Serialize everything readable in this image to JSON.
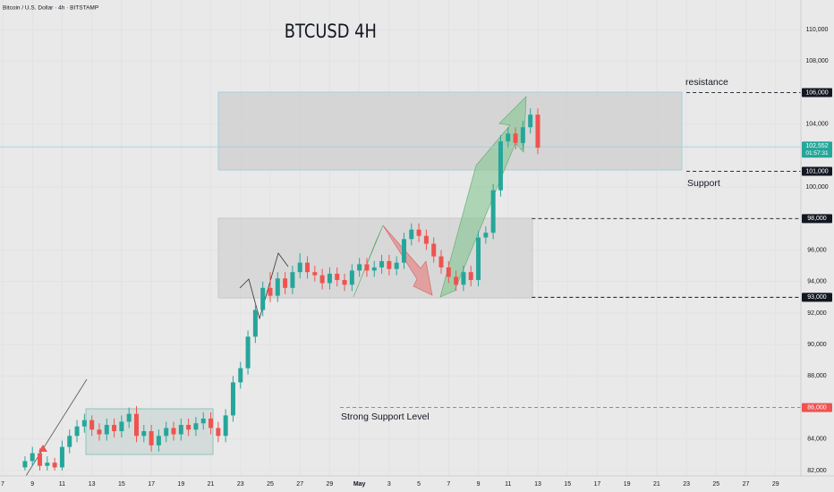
{
  "chart_data": {
    "type": "candlestick",
    "title": "Bitcoin / U.S. Dollar · 4h · BITSTAMP",
    "subtitle": "BTCUSD 4H",
    "annotations": {
      "resistance": "resistance",
      "support": "Support",
      "strong_support": "Strong Support Level"
    },
    "up_color": "#26a69a",
    "down_color": "#ef5350",
    "xlim": [
      -0.18,
      53.7
    ],
    "xticks": [
      {
        "value": 0,
        "label": "7"
      },
      {
        "value": 2,
        "label": "9"
      },
      {
        "value": 4,
        "label": "11"
      },
      {
        "value": 6,
        "label": "13"
      },
      {
        "value": 8,
        "label": "15"
      },
      {
        "value": 10,
        "label": "17"
      },
      {
        "value": 12,
        "label": "19"
      },
      {
        "value": 14,
        "label": "21"
      },
      {
        "value": 16,
        "label": "23"
      },
      {
        "value": 18,
        "label": "25"
      },
      {
        "value": 20,
        "label": "27"
      },
      {
        "value": 22,
        "label": "29"
      },
      {
        "value": 24,
        "label": "May"
      },
      {
        "value": 26,
        "label": "3"
      },
      {
        "value": 28,
        "label": "5"
      },
      {
        "value": 30,
        "label": "7"
      },
      {
        "value": 32,
        "label": "9"
      },
      {
        "value": 34,
        "label": "11"
      },
      {
        "value": 36,
        "label": "13"
      },
      {
        "value": 38,
        "label": "15"
      },
      {
        "value": 40,
        "label": "17"
      },
      {
        "value": 42,
        "label": "19"
      },
      {
        "value": 44,
        "label": "21"
      },
      {
        "value": 46,
        "label": "23"
      },
      {
        "value": 48,
        "label": "25"
      },
      {
        "value": 50,
        "label": "27"
      },
      {
        "value": 52,
        "label": "29"
      }
    ],
    "ylim": [
      81660,
      111880
    ],
    "yticks": [
      {
        "value": 82000,
        "label": "82,000"
      },
      {
        "value": 84000,
        "label": "84,000"
      },
      {
        "value": 88000,
        "label": "88,000"
      },
      {
        "value": 90000,
        "label": "90,000"
      },
      {
        "value": 92000,
        "label": "92,000"
      },
      {
        "value": 94000,
        "label": "94,000"
      },
      {
        "value": 96000,
        "label": "96,000"
      },
      {
        "value": 100000,
        "label": "100,000"
      },
      {
        "value": 104000,
        "label": "104,000"
      },
      {
        "value": 108000,
        "label": "108,000"
      },
      {
        "value": 110000,
        "label": "110,000"
      }
    ],
    "levels": [
      {
        "value": 106000,
        "label": "106,000",
        "color": "#131722"
      },
      {
        "value": 101000,
        "label": "101,000",
        "color": "#131722"
      },
      {
        "value": 98000,
        "label": "98,000",
        "color": "#131722"
      },
      {
        "value": 93000,
        "label": "93,000",
        "color": "#131722"
      },
      {
        "value": 86000,
        "label": "86,000",
        "color": "#ef5350"
      }
    ],
    "last_price": {
      "value": 102552,
      "label": "102,552",
      "countdown": "01:57:31",
      "color": "#26a69a"
    },
    "x": [
      1.5,
      2,
      2.5,
      3,
      3.5,
      4,
      4.5,
      5,
      5.5,
      6,
      6.5,
      7,
      7.5,
      8,
      8.5,
      9,
      9.5,
      10,
      10.5,
      11,
      11.5,
      12,
      12.5,
      13,
      13.5,
      14,
      14.5,
      15,
      15.5,
      16,
      16.5,
      17,
      17.5,
      18,
      18.5,
      19,
      19.5,
      20,
      20.5,
      21,
      21.5,
      22,
      22.5,
      23,
      23.5,
      24,
      24.5,
      25,
      25.5,
      26,
      26.5,
      27,
      27.5,
      28,
      28.5,
      29,
      29.5,
      30,
      30.5,
      31,
      31.5,
      32,
      32.5,
      33,
      33.5,
      34,
      34.5,
      35,
      35.5,
      36
    ],
    "candles": [
      [
        82200,
        82900,
        82000,
        82600
      ],
      [
        82600,
        83500,
        82300,
        83100
      ],
      [
        83100,
        83400,
        82000,
        82300
      ],
      [
        82300,
        82900,
        82000,
        82500
      ],
      [
        82500,
        82800,
        82000,
        82200
      ],
      [
        82200,
        83900,
        82000,
        83500
      ],
      [
        83500,
        84600,
        83100,
        84200
      ],
      [
        84200,
        85200,
        83800,
        84800
      ],
      [
        84800,
        85600,
        84400,
        85200
      ],
      [
        85200,
        85500,
        84200,
        84600
      ],
      [
        84600,
        85000,
        83900,
        84300
      ],
      [
        84300,
        85300,
        83900,
        84900
      ],
      [
        84900,
        85300,
        84100,
        84500
      ],
      [
        84500,
        85500,
        84100,
        85100
      ],
      [
        85100,
        86000,
        84700,
        85600
      ],
      [
        85600,
        86100,
        83800,
        84200
      ],
      [
        84200,
        84900,
        83800,
        84500
      ],
      [
        84500,
        84900,
        83200,
        83600
      ],
      [
        83600,
        84600,
        83200,
        84200
      ],
      [
        84200,
        85100,
        83800,
        84700
      ],
      [
        84700,
        85100,
        83900,
        84300
      ],
      [
        84300,
        85300,
        83900,
        84900
      ],
      [
        84900,
        85300,
        84200,
        84600
      ],
      [
        84600,
        85400,
        84200,
        85000
      ],
      [
        85000,
        85700,
        84600,
        85300
      ],
      [
        85300,
        85700,
        84300,
        84700
      ],
      [
        84700,
        85100,
        83800,
        84200
      ],
      [
        84200,
        85900,
        83800,
        85500
      ],
      [
        85500,
        88000,
        85100,
        87600
      ],
      [
        87600,
        88900,
        87200,
        88500
      ],
      [
        88500,
        90900,
        88100,
        90500
      ],
      [
        90500,
        92600,
        90100,
        92200
      ],
      [
        92200,
        94000,
        91800,
        93600
      ],
      [
        93600,
        94600,
        92700,
        93100
      ],
      [
        93100,
        94600,
        92700,
        94200
      ],
      [
        94200,
        94600,
        93200,
        93600
      ],
      [
        93600,
        95000,
        93200,
        94600
      ],
      [
        94600,
        95800,
        94200,
        95200
      ],
      [
        95200,
        95600,
        94200,
        94600
      ],
      [
        94600,
        95000,
        94000,
        94400
      ],
      [
        94400,
        94800,
        93500,
        93900
      ],
      [
        93900,
        94900,
        93500,
        94500
      ],
      [
        94500,
        94900,
        93700,
        94100
      ],
      [
        94100,
        94500,
        93400,
        93800
      ],
      [
        93800,
        95100,
        93400,
        94700
      ],
      [
        94700,
        95500,
        94300,
        95100
      ],
      [
        95100,
        95500,
        94300,
        94700
      ],
      [
        94700,
        95300,
        94300,
        94900
      ],
      [
        94900,
        95700,
        94500,
        95300
      ],
      [
        95300,
        95700,
        94400,
        94800
      ],
      [
        94800,
        95600,
        94400,
        95200
      ],
      [
        95200,
        97100,
        94800,
        96700
      ],
      [
        96700,
        97700,
        96300,
        97300
      ],
      [
        97300,
        97700,
        96500,
        96900
      ],
      [
        96900,
        97300,
        96000,
        96400
      ],
      [
        96400,
        96800,
        95200,
        95600
      ],
      [
        95600,
        96000,
        94500,
        94900
      ],
      [
        94900,
        95300,
        93900,
        94300
      ],
      [
        94300,
        94700,
        93400,
        93800
      ],
      [
        93800,
        95000,
        93400,
        94600
      ],
      [
        94600,
        95000,
        93700,
        94100
      ],
      [
        94100,
        97200,
        93700,
        96800
      ],
      [
        96800,
        97500,
        96400,
        97100
      ],
      [
        97100,
        100200,
        96700,
        99800
      ],
      [
        99800,
        103300,
        99400,
        102900
      ],
      [
        102900,
        103800,
        102500,
        103400
      ],
      [
        103400,
        103800,
        102400,
        102800
      ],
      [
        102800,
        104200,
        102400,
        103800
      ],
      [
        103800,
        105000,
        103400,
        104600
      ],
      [
        104600,
        105000,
        102100,
        102500
      ]
    ]
  }
}
